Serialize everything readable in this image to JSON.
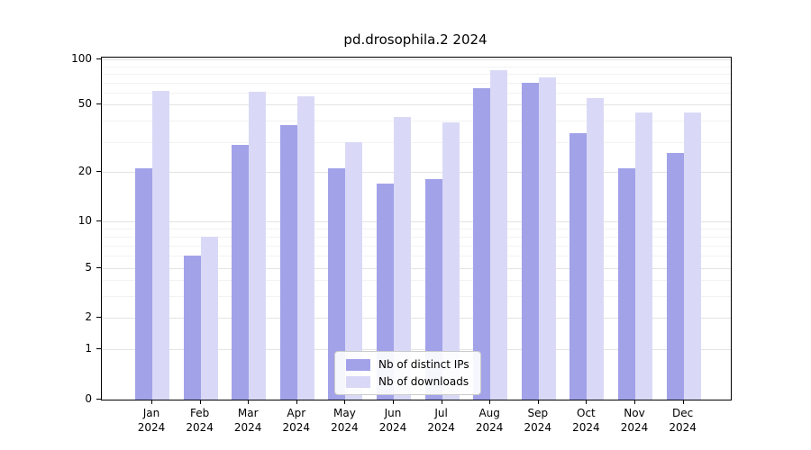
{
  "chart_data": {
    "type": "bar",
    "title": "pd.drosophila.2 2024",
    "categories": [
      "Jan",
      "Feb",
      "Mar",
      "Apr",
      "May",
      "Jun",
      "Jul",
      "Aug",
      "Sep",
      "Oct",
      "Nov",
      "Dec"
    ],
    "category_year": "2024",
    "series": [
      {
        "name": "Nb of distinct IPs",
        "color": "#a2a2e9",
        "values": [
          21,
          6,
          29,
          38,
          21,
          17,
          18,
          64,
          70,
          34,
          21,
          26
        ]
      },
      {
        "name": "Nb of downloads",
        "color": "#d9d9f7",
        "values": [
          62,
          8,
          61,
          57,
          30,
          42,
          39,
          85,
          76,
          55,
          45,
          45
        ]
      }
    ],
    "xlabel": "",
    "ylabel": "",
    "yscale": "symlog",
    "ylim": [
      0,
      100
    ],
    "yticks": [
      0,
      1,
      2,
      5,
      10,
      20,
      50,
      100
    ],
    "yticks_minor": [
      3,
      4,
      6,
      7,
      8,
      9,
      30,
      40,
      60,
      70,
      80,
      90
    ],
    "grid": true,
    "legend_position": "lower center"
  }
}
